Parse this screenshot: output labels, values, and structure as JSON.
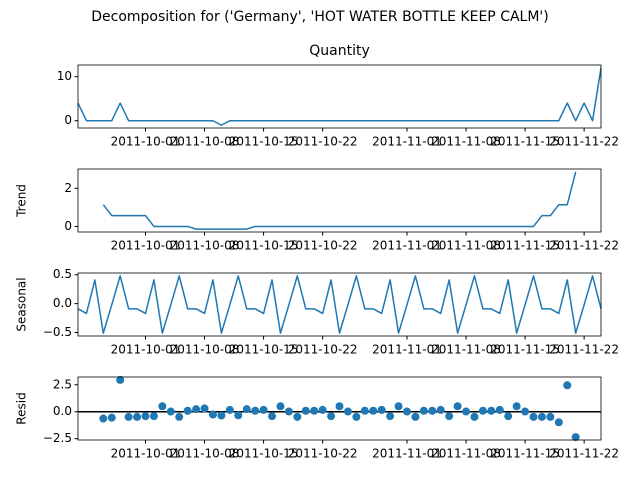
{
  "title": "Decomposition for ('Germany', 'HOT WATER BOTTLE KEEP CALM')",
  "chart_data": [
    {
      "type": "line",
      "title": "Quantity",
      "color": "#1f77b4",
      "x": [
        "2011-09-23",
        "2011-09-24",
        "2011-09-25",
        "2011-09-26",
        "2011-09-27",
        "2011-09-28",
        "2011-09-29",
        "2011-09-30",
        "2011-10-01",
        "2011-10-02",
        "2011-10-03",
        "2011-10-04",
        "2011-10-05",
        "2011-10-06",
        "2011-10-07",
        "2011-10-08",
        "2011-10-09",
        "2011-10-10",
        "2011-10-11",
        "2011-10-12",
        "2011-10-13",
        "2011-10-14",
        "2011-10-15",
        "2011-10-16",
        "2011-10-17",
        "2011-10-18",
        "2011-10-19",
        "2011-10-20",
        "2011-10-21",
        "2011-10-22",
        "2011-10-23",
        "2011-10-24",
        "2011-10-25",
        "2011-10-26",
        "2011-10-27",
        "2011-10-28",
        "2011-10-29",
        "2011-10-30",
        "2011-10-31",
        "2011-11-01",
        "2011-11-02",
        "2011-11-03",
        "2011-11-04",
        "2011-11-05",
        "2011-11-06",
        "2011-11-07",
        "2011-11-08",
        "2011-11-09",
        "2011-11-10",
        "2011-11-11",
        "2011-11-12",
        "2011-11-13",
        "2011-11-14",
        "2011-11-15",
        "2011-11-16",
        "2011-11-17",
        "2011-11-18",
        "2011-11-19",
        "2011-11-20",
        "2011-11-21",
        "2011-11-22",
        "2011-11-23",
        "2011-11-24"
      ],
      "values": [
        4,
        0,
        0,
        0,
        0,
        4,
        0,
        0,
        0,
        0,
        0,
        0,
        0,
        0,
        0,
        0,
        0,
        -1,
        0,
        0,
        0,
        0,
        0,
        0,
        0,
        0,
        0,
        0,
        0,
        0,
        0,
        0,
        0,
        0,
        0,
        0,
        0,
        0,
        0,
        0,
        0,
        0,
        0,
        0,
        0,
        0,
        0,
        0,
        0,
        0,
        0,
        0,
        0,
        0,
        0,
        0,
        0,
        0,
        4,
        0,
        4,
        0,
        12
      ],
      "xlim": [
        "2011-09-23",
        "2011-11-24"
      ],
      "xticks": [
        "2011-10-01",
        "2011-10-08",
        "2011-10-15",
        "2011-10-22",
        "2011-11-01",
        "2011-11-08",
        "2011-11-15",
        "2011-11-22"
      ],
      "ylim": [
        -1.65,
        12.65
      ],
      "yticks": [
        0,
        10
      ]
    },
    {
      "type": "line",
      "ylabel": "Trend",
      "color": "#1f77b4",
      "x": [
        "2011-09-23",
        "2011-09-24",
        "2011-09-25",
        "2011-09-26",
        "2011-09-27",
        "2011-09-28",
        "2011-09-29",
        "2011-09-30",
        "2011-10-01",
        "2011-10-02",
        "2011-10-03",
        "2011-10-04",
        "2011-10-05",
        "2011-10-06",
        "2011-10-07",
        "2011-10-08",
        "2011-10-09",
        "2011-10-10",
        "2011-10-11",
        "2011-10-12",
        "2011-10-13",
        "2011-10-14",
        "2011-10-15",
        "2011-10-16",
        "2011-10-17",
        "2011-10-18",
        "2011-10-19",
        "2011-10-20",
        "2011-10-21",
        "2011-10-22",
        "2011-10-23",
        "2011-10-24",
        "2011-10-25",
        "2011-10-26",
        "2011-10-27",
        "2011-10-28",
        "2011-10-29",
        "2011-10-30",
        "2011-10-31",
        "2011-11-01",
        "2011-11-02",
        "2011-11-03",
        "2011-11-04",
        "2011-11-05",
        "2011-11-06",
        "2011-11-07",
        "2011-11-08",
        "2011-11-09",
        "2011-11-10",
        "2011-11-11",
        "2011-11-12",
        "2011-11-13",
        "2011-11-14",
        "2011-11-15",
        "2011-11-16",
        "2011-11-17",
        "2011-11-18",
        "2011-11-19",
        "2011-11-20",
        "2011-11-21",
        "2011-11-22",
        "2011-11-23",
        "2011-11-24"
      ],
      "values": [
        null,
        null,
        null,
        1.14,
        0.57,
        0.57,
        0.57,
        0.57,
        0.57,
        0,
        0,
        0,
        0,
        0,
        -0.14,
        -0.14,
        -0.14,
        -0.14,
        -0.14,
        -0.14,
        -0.14,
        0,
        0,
        0,
        0,
        0,
        0,
        0,
        0,
        0,
        0,
        0,
        0,
        0,
        0,
        0,
        0,
        0,
        0,
        0,
        0,
        0,
        0,
        0,
        0,
        0,
        0,
        0,
        0,
        0,
        0,
        0,
        0,
        0,
        0,
        0.57,
        0.57,
        1.14,
        1.14,
        2.86,
        null,
        null,
        null
      ],
      "xlim": [
        "2011-09-23",
        "2011-11-24"
      ],
      "xticks": [
        "2011-10-01",
        "2011-10-08",
        "2011-10-15",
        "2011-10-22",
        "2011-11-01",
        "2011-11-08",
        "2011-11-15",
        "2011-11-22"
      ],
      "ylim": [
        -0.29,
        3.01
      ],
      "yticks": [
        0,
        2
      ]
    },
    {
      "type": "line",
      "ylabel": "Seasonal",
      "color": "#1f77b4",
      "x": [
        "2011-09-23",
        "2011-09-24",
        "2011-09-25",
        "2011-09-26",
        "2011-09-27",
        "2011-09-28",
        "2011-09-29",
        "2011-09-30",
        "2011-10-01",
        "2011-10-02",
        "2011-10-03",
        "2011-10-04",
        "2011-10-05",
        "2011-10-06",
        "2011-10-07",
        "2011-10-08",
        "2011-10-09",
        "2011-10-10",
        "2011-10-11",
        "2011-10-12",
        "2011-10-13",
        "2011-10-14",
        "2011-10-15",
        "2011-10-16",
        "2011-10-17",
        "2011-10-18",
        "2011-10-19",
        "2011-10-20",
        "2011-10-21",
        "2011-10-22",
        "2011-10-23",
        "2011-10-24",
        "2011-10-25",
        "2011-10-26",
        "2011-10-27",
        "2011-10-28",
        "2011-10-29",
        "2011-10-30",
        "2011-10-31",
        "2011-11-01",
        "2011-11-02",
        "2011-11-03",
        "2011-11-04",
        "2011-11-05",
        "2011-11-06",
        "2011-11-07",
        "2011-11-08",
        "2011-11-09",
        "2011-11-10",
        "2011-11-11",
        "2011-11-12",
        "2011-11-13",
        "2011-11-14",
        "2011-11-15",
        "2011-11-16",
        "2011-11-17",
        "2011-11-18",
        "2011-11-19",
        "2011-11-20",
        "2011-11-21",
        "2011-11-22",
        "2011-11-23",
        "2011-11-24"
      ],
      "values": [
        -0.09,
        -0.17,
        0.41,
        -0.51,
        -0.02,
        0.48,
        -0.09,
        -0.09,
        -0.17,
        0.41,
        -0.51,
        -0.02,
        0.48,
        -0.09,
        -0.09,
        -0.17,
        0.41,
        -0.51,
        -0.02,
        0.48,
        -0.09,
        -0.09,
        -0.17,
        0.41,
        -0.51,
        -0.02,
        0.48,
        -0.09,
        -0.09,
        -0.17,
        0.41,
        -0.51,
        -0.02,
        0.48,
        -0.09,
        -0.09,
        -0.17,
        0.41,
        -0.51,
        -0.02,
        0.48,
        -0.09,
        -0.09,
        -0.17,
        0.41,
        -0.51,
        -0.02,
        0.48,
        -0.09,
        -0.09,
        -0.17,
        0.41,
        -0.51,
        -0.02,
        0.48,
        -0.09,
        -0.09,
        -0.17,
        0.41,
        -0.51,
        -0.02,
        0.48,
        -0.09
      ],
      "xlim": [
        "2011-09-23",
        "2011-11-24"
      ],
      "xticks": [
        "2011-10-01",
        "2011-10-08",
        "2011-10-15",
        "2011-10-22",
        "2011-11-01",
        "2011-11-08",
        "2011-11-15",
        "2011-11-22"
      ],
      "ylim": [
        -0.56,
        0.53
      ],
      "yticks": [
        {
          "value": -0.5,
          "label": "−0.5"
        },
        {
          "value": 0,
          "label": "0.0"
        },
        0.5
      ]
    },
    {
      "type": "scatter",
      "ylabel": "Resid",
      "color": "#1f77b4",
      "x": [
        "2011-09-23",
        "2011-09-24",
        "2011-09-25",
        "2011-09-26",
        "2011-09-27",
        "2011-09-28",
        "2011-09-29",
        "2011-09-30",
        "2011-10-01",
        "2011-10-02",
        "2011-10-03",
        "2011-10-04",
        "2011-10-05",
        "2011-10-06",
        "2011-10-07",
        "2011-10-08",
        "2011-10-09",
        "2011-10-10",
        "2011-10-11",
        "2011-10-12",
        "2011-10-13",
        "2011-10-14",
        "2011-10-15",
        "2011-10-16",
        "2011-10-17",
        "2011-10-18",
        "2011-10-19",
        "2011-10-20",
        "2011-10-21",
        "2011-10-22",
        "2011-10-23",
        "2011-10-24",
        "2011-10-25",
        "2011-10-26",
        "2011-10-27",
        "2011-10-28",
        "2011-10-29",
        "2011-10-30",
        "2011-10-31",
        "2011-11-01",
        "2011-11-02",
        "2011-11-03",
        "2011-11-04",
        "2011-11-05",
        "2011-11-06",
        "2011-11-07",
        "2011-11-08",
        "2011-11-09",
        "2011-11-10",
        "2011-11-11",
        "2011-11-12",
        "2011-11-13",
        "2011-11-14",
        "2011-11-15",
        "2011-11-16",
        "2011-11-17",
        "2011-11-18",
        "2011-11-19",
        "2011-11-20",
        "2011-11-21",
        "2011-11-22",
        "2011-11-23",
        "2011-11-24"
      ],
      "values": [
        null,
        null,
        null,
        -0.63,
        -0.55,
        2.95,
        -0.48,
        -0.48,
        -0.41,
        -0.41,
        0.51,
        0.02,
        -0.48,
        0.09,
        0.24,
        0.31,
        -0.26,
        -0.35,
        0.17,
        -0.33,
        0.24,
        0.09,
        0.17,
        -0.41,
        0.51,
        0.02,
        -0.48,
        0.09,
        0.09,
        0.17,
        -0.41,
        0.51,
        0.02,
        -0.48,
        0.09,
        0.09,
        0.17,
        -0.41,
        0.51,
        0.02,
        -0.48,
        0.09,
        0.09,
        0.17,
        -0.41,
        0.51,
        0.02,
        -0.48,
        0.09,
        0.09,
        0.17,
        -0.41,
        0.51,
        0.02,
        -0.48,
        -0.48,
        -0.48,
        -0.98,
        2.45,
        -2.35,
        null,
        null,
        null
      ],
      "xlim": [
        "2011-09-23",
        "2011-11-24"
      ],
      "xticks": [
        "2011-10-01",
        "2011-10-08",
        "2011-10-15",
        "2011-10-22",
        "2011-11-01",
        "2011-11-08",
        "2011-11-15",
        "2011-11-22"
      ],
      "ylim": [
        -2.62,
        3.22
      ],
      "yticks": [
        {
          "value": -2.5,
          "label": "−2.5"
        },
        {
          "value": 0,
          "label": "0.0"
        },
        2.5
      ]
    }
  ]
}
